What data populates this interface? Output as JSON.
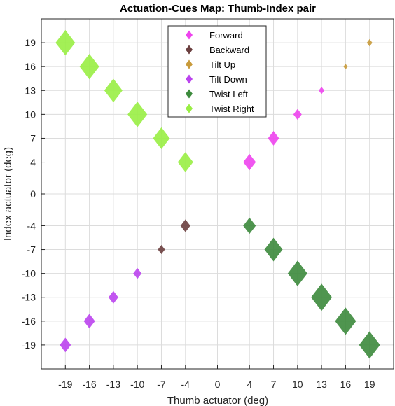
{
  "chart_data": {
    "type": "scatter",
    "title": "Actuation-Cues Map: Thumb-Index pair",
    "xlabel": "Thumb actuator (deg)",
    "ylabel": "Index actuator (deg)",
    "xticks": [
      -19,
      -16,
      -13,
      -10,
      -7,
      -4,
      0,
      4,
      7,
      10,
      13,
      16,
      19
    ],
    "yticks": [
      -19,
      -16,
      -13,
      -10,
      -7,
      -4,
      0,
      4,
      7,
      10,
      13,
      16,
      19
    ],
    "xlim": [
      -22,
      22
    ],
    "ylim": [
      -22,
      22
    ],
    "grid": true,
    "legend_position": "top-center",
    "marker": "diamond",
    "series": [
      {
        "name": "Forward",
        "color": "#ee44ee",
        "points": [
          {
            "x": 4,
            "y": 4,
            "size": 9
          },
          {
            "x": 7,
            "y": 7,
            "size": 8
          },
          {
            "x": 10,
            "y": 10,
            "size": 6
          },
          {
            "x": 13,
            "y": 13,
            "size": 4
          }
        ]
      },
      {
        "name": "Backward",
        "color": "#6b3f3f",
        "points": [
          {
            "x": -4,
            "y": -4,
            "size": 7
          },
          {
            "x": -7,
            "y": -7,
            "size": 5
          }
        ]
      },
      {
        "name": "Tilt Up",
        "color": "#c89a3a",
        "points": [
          {
            "x": 16,
            "y": 16,
            "size": 3
          },
          {
            "x": 19,
            "y": 19,
            "size": 4
          }
        ]
      },
      {
        "name": "Tilt Down",
        "color": "#bb44ee",
        "points": [
          {
            "x": -10,
            "y": -10,
            "size": 6
          },
          {
            "x": -13,
            "y": -13,
            "size": 7
          },
          {
            "x": -16,
            "y": -16,
            "size": 8
          },
          {
            "x": -19,
            "y": -19,
            "size": 8
          }
        ]
      },
      {
        "name": "Twist Left",
        "color": "#3c8a3c",
        "points": [
          {
            "x": 4,
            "y": -4,
            "size": 9
          },
          {
            "x": 7,
            "y": -7,
            "size": 13
          },
          {
            "x": 10,
            "y": -10,
            "size": 14
          },
          {
            "x": 13,
            "y": -13,
            "size": 15
          },
          {
            "x": 16,
            "y": -16,
            "size": 15
          },
          {
            "x": 19,
            "y": -19,
            "size": 15
          }
        ]
      },
      {
        "name": "Twist Right",
        "color": "#99ee44",
        "points": [
          {
            "x": -4,
            "y": 4,
            "size": 11
          },
          {
            "x": -7,
            "y": 7,
            "size": 12
          },
          {
            "x": -10,
            "y": 10,
            "size": 14
          },
          {
            "x": -13,
            "y": 13,
            "size": 13
          },
          {
            "x": -16,
            "y": 16,
            "size": 14
          },
          {
            "x": -19,
            "y": 19,
            "size": 14
          }
        ]
      }
    ]
  }
}
